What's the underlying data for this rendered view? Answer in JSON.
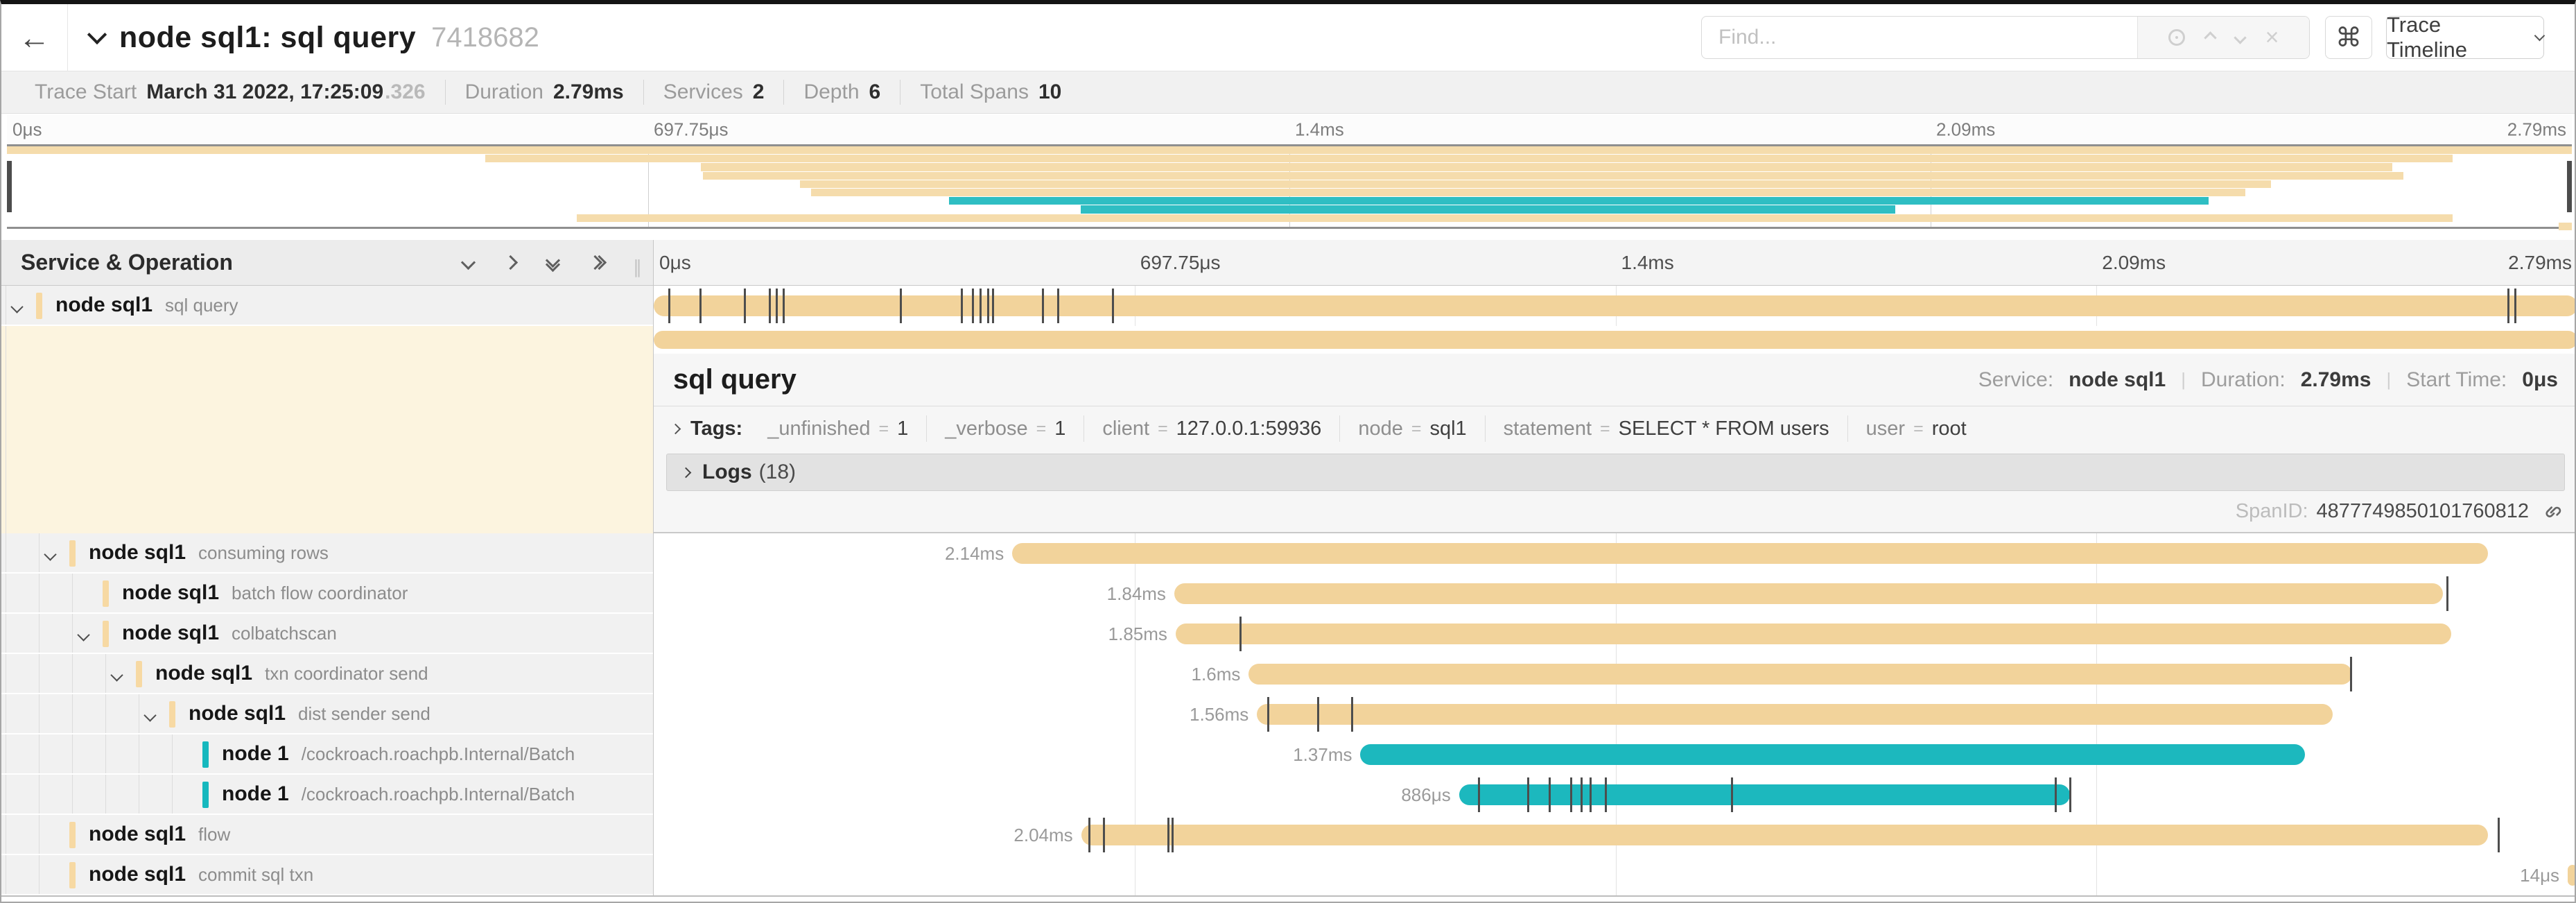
{
  "header": {
    "back_icon": "←",
    "title": "node sql1: sql query",
    "trace_id": "7418682",
    "find_placeholder": "Find...",
    "shortcut_icon": "⌘",
    "view_button": "Trace Timeline"
  },
  "stats": {
    "items": [
      {
        "label": "Trace Start",
        "value": "March 31 2022, 17:25:09",
        "muted": ".326"
      },
      {
        "label": "Duration",
        "value": "2.79ms"
      },
      {
        "label": "Services",
        "value": "2"
      },
      {
        "label": "Depth",
        "value": "6"
      },
      {
        "label": "Total Spans",
        "value": "10"
      }
    ]
  },
  "timeline": {
    "total_ms": 2.79,
    "ruler_labels": [
      {
        "text": "0μs",
        "pct": 0
      },
      {
        "text": "697.75μs",
        "pct": 25
      },
      {
        "text": "1.4ms",
        "pct": 50
      },
      {
        "text": "2.09ms",
        "pct": 75
      },
      {
        "text": "2.79ms",
        "pct": 100
      }
    ],
    "tree_header": "Service & Operation",
    "colors": {
      "tan": "#F2D39B",
      "teal": "#1CB8BE",
      "tan_accent": "#F7D9A3",
      "teal_accent": "#16B8BE",
      "tan_mini": "#F5DCAC",
      "teal_mini": "#2FBEC3",
      "tick": "#4d4d4d"
    },
    "spans": [
      {
        "service": "node sql1",
        "operation": "sql query",
        "depth": 0,
        "chevron": true,
        "selected": true,
        "color": "tan",
        "start_ms": 0,
        "duration_ms": 2.79,
        "duration_label": "",
        "ticks_ms": [
          0.021,
          0.066,
          0.131,
          0.167,
          0.177,
          0.187,
          0.357,
          0.445,
          0.461,
          0.473,
          0.484,
          0.491,
          0.563,
          0.585,
          0.665,
          2.688,
          2.699
        ]
      },
      {
        "service": "node sql1",
        "operation": "consuming rows",
        "depth": 1,
        "chevron": true,
        "selected": false,
        "color": "tan",
        "start_ms": 0.52,
        "duration_ms": 2.14,
        "duration_label": "2.14ms",
        "ticks_ms": []
      },
      {
        "service": "node sql1",
        "operation": "batch flow coordinator",
        "depth": 2,
        "chevron": false,
        "selected": false,
        "color": "tan",
        "start_ms": 0.755,
        "duration_ms": 1.84,
        "duration_label": "1.84ms",
        "ticks_ms": [
          2.6
        ]
      },
      {
        "service": "node sql1",
        "operation": "colbatchscan",
        "depth": 2,
        "chevron": true,
        "selected": false,
        "color": "tan",
        "start_ms": 0.757,
        "duration_ms": 1.85,
        "duration_label": "1.85ms",
        "ticks_ms": [
          0.85
        ]
      },
      {
        "service": "node sql1",
        "operation": "txn coordinator send",
        "depth": 3,
        "chevron": true,
        "selected": false,
        "color": "tan",
        "start_ms": 0.863,
        "duration_ms": 1.6,
        "duration_label": "1.6ms",
        "ticks_ms": [
          2.46
        ]
      },
      {
        "service": "node sql1",
        "operation": "dist sender send",
        "depth": 4,
        "chevron": true,
        "selected": false,
        "color": "tan",
        "start_ms": 0.875,
        "duration_ms": 1.56,
        "duration_label": "1.56ms",
        "ticks_ms": [
          0.89,
          0.962,
          1.011
        ]
      },
      {
        "service": "node 1",
        "operation": "/cockroach.roachpb.Internal/Batch",
        "depth": 5,
        "chevron": false,
        "selected": false,
        "color": "teal",
        "start_ms": 1.025,
        "duration_ms": 1.37,
        "duration_label": "1.37ms",
        "ticks_ms": []
      },
      {
        "service": "node 1",
        "operation": "/cockroach.roachpb.Internal/Batch",
        "depth": 5,
        "chevron": false,
        "selected": false,
        "color": "teal",
        "start_ms": 1.168,
        "duration_ms": 0.886,
        "duration_label": "886μs",
        "ticks_ms": [
          1.195,
          1.267,
          1.298,
          1.329,
          1.344,
          1.357,
          1.379,
          1.562,
          2.032,
          2.053
        ]
      },
      {
        "service": "node sql1",
        "operation": "flow",
        "depth": 1,
        "chevron": false,
        "selected": false,
        "color": "tan",
        "start_ms": 0.62,
        "duration_ms": 2.04,
        "duration_label": "2.04ms",
        "ticks_ms": [
          0.63,
          0.652,
          0.745,
          0.751,
          2.674
        ]
      },
      {
        "service": "node sql1",
        "operation": "commit sql txn",
        "depth": 1,
        "chevron": false,
        "selected": false,
        "color": "tan",
        "start_ms": 2.776,
        "duration_ms": 0.014,
        "duration_label": "14μs",
        "ticks_ms": []
      }
    ]
  },
  "detail": {
    "title": "sql query",
    "service_label": "Service:",
    "service": "node sql1",
    "duration_label": "Duration:",
    "duration": "2.79ms",
    "start_label": "Start Time:",
    "start": "0μs",
    "tags_label": "Tags:",
    "tags": [
      {
        "key": "_unfinished",
        "value": "1"
      },
      {
        "key": "_verbose",
        "value": "1"
      },
      {
        "key": "client",
        "value": "127.0.0.1:59936"
      },
      {
        "key": "node",
        "value": "sql1"
      },
      {
        "key": "statement",
        "value": "SELECT * FROM users"
      },
      {
        "key": "user",
        "value": "root"
      }
    ],
    "logs_label": "Logs",
    "logs_count": "(18)",
    "spanid_label": "SpanID:",
    "spanid": "4877749850101760812"
  }
}
